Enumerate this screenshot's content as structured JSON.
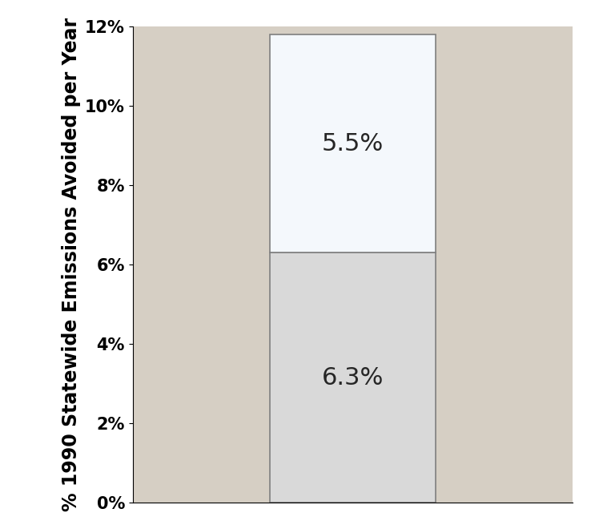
{
  "chart_data": {
    "type": "bar",
    "stacked": true,
    "data_labels": true,
    "y_label": "% 1990 Statewide Emissions Avoided per Year",
    "categories": [
      null
    ],
    "series": [
      {
        "color": "#d9d9d9",
        "values": [
          6.3
        ],
        "value_labels": [
          "6.3%"
        ]
      },
      {
        "color": "#f4f8fc",
        "values": [
          5.5
        ],
        "value_labels": [
          "5.5%"
        ]
      }
    ],
    "ylim": [
      0,
      12
    ],
    "yticks": [
      {
        "value": 0,
        "label": "0%"
      },
      {
        "value": 2,
        "label": "2%"
      },
      {
        "value": 4,
        "label": "4%"
      },
      {
        "value": 6,
        "label": "6%"
      },
      {
        "value": 8,
        "label": "8%"
      },
      {
        "value": 10,
        "label": "10%"
      },
      {
        "value": 12,
        "label": "12%"
      }
    ],
    "grid": false
  }
}
